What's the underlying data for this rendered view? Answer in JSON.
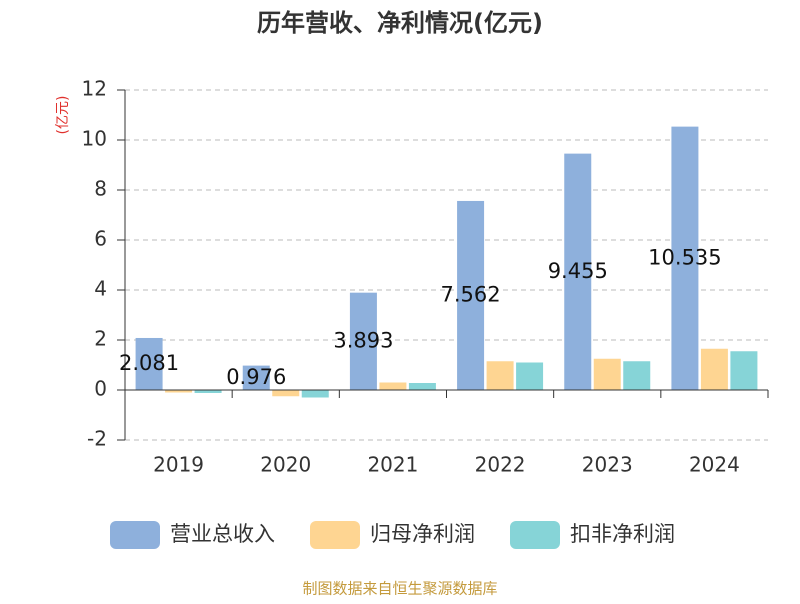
{
  "chart_data": {
    "type": "bar",
    "title": "历年营收、净利情况(亿元)",
    "y_label": "(亿元)",
    "categories": [
      "2019",
      "2020",
      "2021",
      "2022",
      "2023",
      "2024"
    ],
    "series": [
      {
        "name": "营业总收入",
        "color": "#8eb0dc",
        "values": [
          2.081,
          0.976,
          3.893,
          7.562,
          9.455,
          10.535
        ],
        "show_value_labels": true
      },
      {
        "name": "归母净利润",
        "color": "#fed592",
        "values": [
          -0.1,
          -0.25,
          0.3,
          1.15,
          1.25,
          1.65
        ],
        "show_value_labels": false
      },
      {
        "name": "扣非净利润",
        "color": "#86d4d7",
        "values": [
          -0.12,
          -0.3,
          0.28,
          1.1,
          1.15,
          1.55
        ],
        "show_value_labels": false
      }
    ],
    "ylim": [
      -2,
      12
    ],
    "yticks": [
      -2,
      0,
      2,
      4,
      6,
      8,
      10,
      12
    ],
    "grid": true,
    "source": "制图数据来自恒生聚源数据库"
  }
}
